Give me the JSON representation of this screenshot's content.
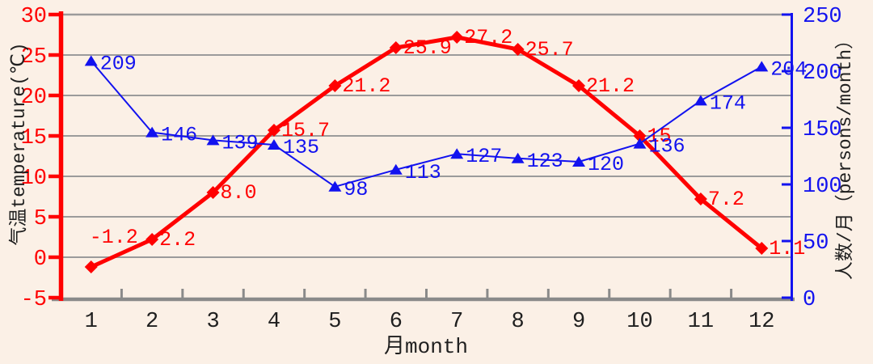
{
  "chart_data": {
    "type": "line",
    "title": "",
    "background": "#fbf0e6",
    "grid": {
      "horizontal": true,
      "vertical": false,
      "color": "#9b9b9b"
    },
    "x_axis": {
      "label": "月month",
      "color": "#8a8a8a",
      "categories": [
        "1",
        "2",
        "3",
        "4",
        "5",
        "6",
        "7",
        "8",
        "9",
        "10",
        "11",
        "12"
      ]
    },
    "left_axis": {
      "label": "气温temperature(℃)",
      "color": "#ff0000",
      "min": -5,
      "max": 30,
      "tick_step": 5,
      "ticks": [
        "30",
        "25",
        "20",
        "15",
        "10",
        "5",
        "0",
        "-5"
      ]
    },
    "right_axis": {
      "label": "人数/月（persons/month）",
      "color": "#1212ef",
      "min": 0,
      "max": 250,
      "tick_step": 50,
      "ticks": [
        "250",
        "200",
        "150",
        "100",
        "50",
        "0"
      ]
    },
    "series": [
      {
        "key": "temperature",
        "name": "气温 temperature",
        "axis": "left",
        "color": "#ff0000",
        "marker": "diamond",
        "line_width": 5,
        "values": [
          -1.2,
          2.2,
          8.0,
          15.7,
          21.2,
          25.9,
          27.2,
          25.7,
          21.2,
          15,
          7.2,
          1.1
        ],
        "labels": [
          "-1.2",
          "2.2",
          "8.0",
          "15.7",
          "21.2",
          "25.9",
          "27.2",
          "25.7",
          "21.2",
          "15",
          "7.2",
          "1.1"
        ],
        "label_dx": 9,
        "label_dy": -2,
        "label_overrides": {
          "0": [
            -2,
            -39
          ]
        }
      },
      {
        "key": "persons",
        "name": "人数/月 persons/month",
        "axis": "right",
        "color": "#1212ef",
        "marker": "triangle",
        "line_width": 2,
        "values": [
          209,
          146,
          139,
          135,
          98,
          113,
          127,
          123,
          120,
          136,
          174,
          204
        ],
        "labels": [
          "209",
          "146",
          "139",
          "135",
          "98",
          "113",
          "127",
          "123",
          "120",
          "136",
          "174",
          "204"
        ],
        "label_dx": 11,
        "label_dy": 1,
        "label_overrides": {}
      }
    ]
  }
}
